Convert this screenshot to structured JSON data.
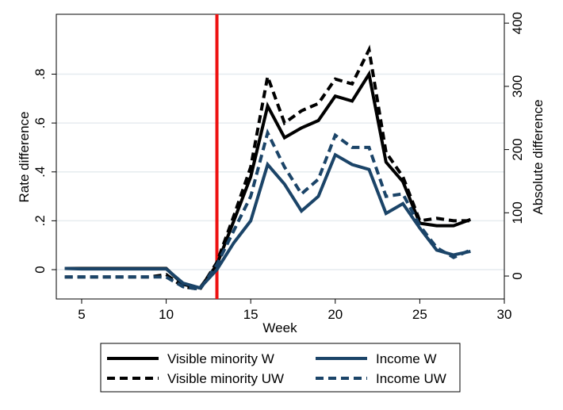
{
  "chart_data": {
    "type": "line",
    "xlabel": "Week",
    "ylabel_left": "Rate difference",
    "ylabel_right": "Absolute difference",
    "xlim": [
      3.5,
      30
    ],
    "ylim_left": [
      -0.12,
      1.045
    ],
    "ylim_right": [
      -36.3,
      414
    ],
    "x_ticks": [
      5,
      10,
      15,
      20,
      25,
      30
    ],
    "y_left_ticks": [
      0,
      0.2,
      0.4,
      0.6,
      0.8
    ],
    "y_left_tick_labels": [
      "0",
      ".2",
      ".4",
      ".6",
      ".8"
    ],
    "y_right_ticks": [
      0,
      100,
      200,
      300,
      400
    ],
    "y_right_tick_labels": [
      "0",
      "100",
      "200",
      "300",
      "400"
    ],
    "reference_line": {
      "x": 13,
      "color": "#ee1111"
    },
    "grid": "horizontal",
    "legend_position": "bottom",
    "series": [
      {
        "name": "Visible minority W",
        "color": "#000000",
        "dash": "solid",
        "x": [
          4,
          5,
          6,
          7,
          8,
          9,
          10,
          11,
          12,
          13,
          14,
          15,
          16,
          17,
          18,
          19,
          20,
          21,
          22,
          23,
          24,
          25,
          26,
          27,
          28
        ],
        "y": [
          0.005,
          0.005,
          0.005,
          0.005,
          0.005,
          0.005,
          0.005,
          -0.06,
          -0.075,
          0.02,
          0.2,
          0.38,
          0.67,
          0.54,
          0.58,
          0.61,
          0.71,
          0.69,
          0.8,
          0.44,
          0.36,
          0.19,
          0.18,
          0.18,
          0.205
        ]
      },
      {
        "name": "Visible minority UW",
        "color": "#000000",
        "dash": "dashed",
        "x": [
          4,
          5,
          6,
          7,
          8,
          9,
          10,
          11,
          12,
          13,
          14,
          15,
          16,
          17,
          18,
          19,
          20,
          21,
          22,
          23,
          24,
          25,
          26,
          27,
          28
        ],
        "y": [
          -0.03,
          -0.03,
          -0.03,
          -0.03,
          -0.03,
          -0.03,
          -0.02,
          -0.07,
          -0.08,
          0.03,
          0.22,
          0.42,
          0.79,
          0.6,
          0.65,
          0.68,
          0.78,
          0.76,
          0.9,
          0.48,
          0.38,
          0.2,
          0.21,
          0.2,
          0.2
        ]
      },
      {
        "name": "Income W",
        "color": "#1b4468",
        "dash": "solid",
        "x": [
          4,
          5,
          6,
          7,
          8,
          9,
          10,
          11,
          12,
          13,
          14,
          15,
          16,
          17,
          18,
          19,
          20,
          21,
          22,
          23,
          24,
          25,
          26,
          27,
          28
        ],
        "y": [
          0.005,
          0.003,
          0.003,
          0.003,
          0.003,
          0.003,
          0.003,
          -0.055,
          -0.075,
          0.0,
          0.11,
          0.2,
          0.43,
          0.35,
          0.24,
          0.3,
          0.47,
          0.43,
          0.41,
          0.23,
          0.27,
          0.17,
          0.08,
          0.06,
          0.075
        ]
      },
      {
        "name": "Income UW",
        "color": "#1b4468",
        "dash": "dashed",
        "x": [
          4,
          5,
          6,
          7,
          8,
          9,
          10,
          11,
          12,
          13,
          14,
          15,
          16,
          17,
          18,
          19,
          20,
          21,
          22,
          23,
          24,
          25,
          26,
          27,
          28
        ],
        "y": [
          -0.03,
          -0.03,
          -0.03,
          -0.03,
          -0.03,
          -0.03,
          -0.03,
          -0.07,
          -0.08,
          0.02,
          0.16,
          0.3,
          0.56,
          0.42,
          0.31,
          0.37,
          0.55,
          0.5,
          0.5,
          0.3,
          0.31,
          0.18,
          0.09,
          0.05,
          0.08
        ]
      }
    ]
  }
}
